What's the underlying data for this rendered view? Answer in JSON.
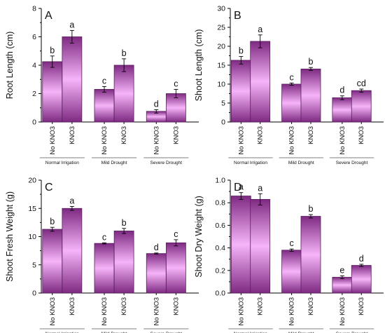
{
  "chart_data": [
    {
      "type": "bar",
      "panel": "A",
      "ylabel": "Root Length (cm)",
      "ylim": [
        0,
        8
      ],
      "yticks": [
        0,
        2,
        4,
        6,
        8
      ],
      "categories": [
        "No KNO3",
        "KNO3",
        "No KNO3",
        "KNO3",
        "No KNO3",
        "KNO3"
      ],
      "groups": [
        "Normal Irrigation",
        "Mild Drought",
        "Severe Drought"
      ],
      "values": [
        4.25,
        6.0,
        2.3,
        4.0,
        0.75,
        2.0
      ],
      "errors": [
        0.4,
        0.45,
        0.2,
        0.45,
        0.12,
        0.3
      ],
      "letters": [
        "b",
        "a",
        "c",
        "b",
        "d",
        "c"
      ]
    },
    {
      "type": "bar",
      "panel": "B",
      "ylabel": "Shoot Length (cm)",
      "ylim": [
        0,
        30
      ],
      "yticks": [
        0,
        5,
        10,
        15,
        20,
        25,
        30
      ],
      "categories": [
        "No KNO3",
        "KNO3",
        "No KNO3",
        "KNO3",
        "No KNO3",
        "KNO3"
      ],
      "groups": [
        "Normal Irrigation",
        "Mild Drought",
        "Severe Drought"
      ],
      "values": [
        16.3,
        21.3,
        10.0,
        14.0,
        6.4,
        8.3
      ],
      "errors": [
        1.0,
        1.7,
        0.3,
        0.4,
        0.5,
        0.4
      ],
      "letters": [
        "b",
        "a",
        "c",
        "b",
        "d",
        "cd"
      ]
    },
    {
      "type": "bar",
      "panel": "C",
      "ylabel": "Shoot Fresh Weight (g)",
      "ylim": [
        0,
        20
      ],
      "yticks": [
        0,
        5,
        10,
        15,
        20
      ],
      "categories": [
        "No KNO3",
        "KNO3",
        "No KNO3",
        "KNO3",
        "No KNO3",
        "KNO3"
      ],
      "groups": [
        "Normal Irrigation",
        "Mild Drought",
        "Severe Drought"
      ],
      "values": [
        11.3,
        15.0,
        8.8,
        11.0,
        7.0,
        8.9
      ],
      "errors": [
        0.35,
        0.35,
        0.1,
        0.45,
        0.1,
        0.55
      ],
      "letters": [
        "b",
        "a",
        "c",
        "b",
        "d",
        "c"
      ]
    },
    {
      "type": "bar",
      "panel": "D",
      "ylabel": "Shoot Dry Weight (g)",
      "ylim": [
        0,
        1.0
      ],
      "yticks": [
        0.0,
        0.2,
        0.4,
        0.6,
        0.8,
        1.0
      ],
      "categories": [
        "No KNO3",
        "KNO3",
        "No KNO3",
        "KNO3",
        "No KNO3",
        "KNO3"
      ],
      "groups": [
        "Normal Irrigation",
        "Mild Drought",
        "Severe Drought"
      ],
      "values": [
        0.86,
        0.83,
        0.38,
        0.68,
        0.14,
        0.245
      ],
      "errors": [
        0.03,
        0.05,
        0.01,
        0.015,
        0.012,
        0.01
      ],
      "letters": [
        "a",
        "a",
        "c",
        "b",
        "e",
        "d"
      ]
    }
  ]
}
